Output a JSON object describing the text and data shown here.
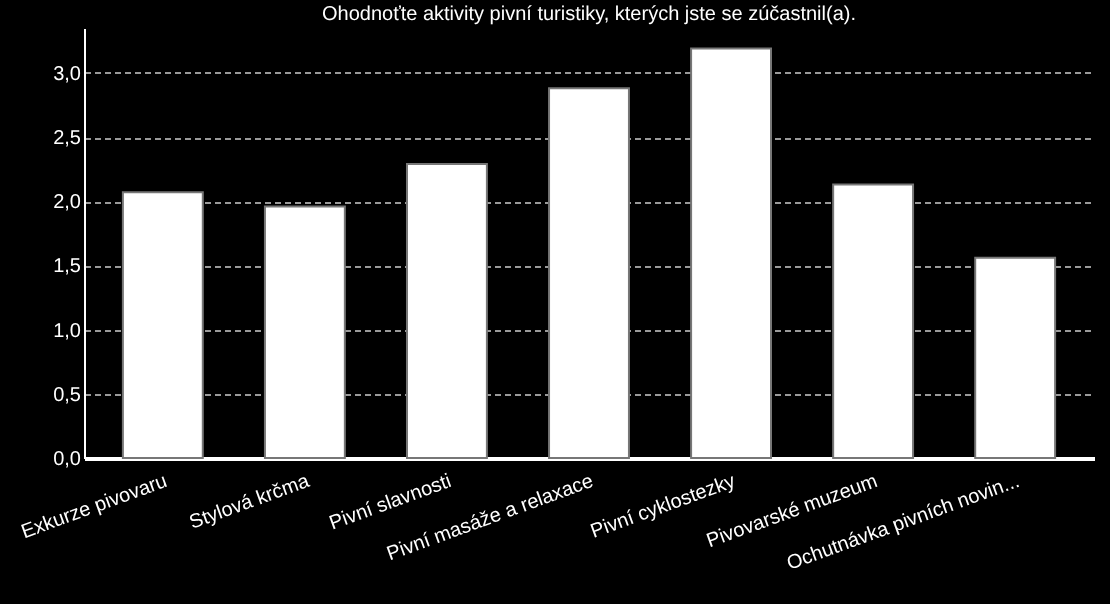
{
  "chart_data": {
    "type": "bar",
    "title": "Ohodnoťte aktivity pivní turistiky, kterých jste se zúčastnil(a).",
    "categories": [
      "Exkurze pivovaru",
      "Stylová krčma",
      "Pivní slavnosti",
      "Pivní masáže a relaxace",
      "Pivní cyklostezky",
      "Pivovarské muzeum",
      "Ochutnávka pivních novin..."
    ],
    "values": [
      2.07,
      1.96,
      2.29,
      2.88,
      3.19,
      2.13,
      1.56
    ],
    "color": "#ffffff",
    "ylim": [
      0,
      3.35
    ],
    "yticks": [
      {
        "value": 0,
        "label": "0,0"
      },
      {
        "value": 0.5,
        "label": "0,5"
      },
      {
        "value": 1,
        "label": "1,0"
      },
      {
        "value": 1.5,
        "label": "1,5"
      },
      {
        "value": 2,
        "label": "2,0"
      },
      {
        "value": 2.5,
        "label": "2,5"
      },
      {
        "value": 3,
        "label": "3,0"
      }
    ],
    "grid": "y"
  }
}
